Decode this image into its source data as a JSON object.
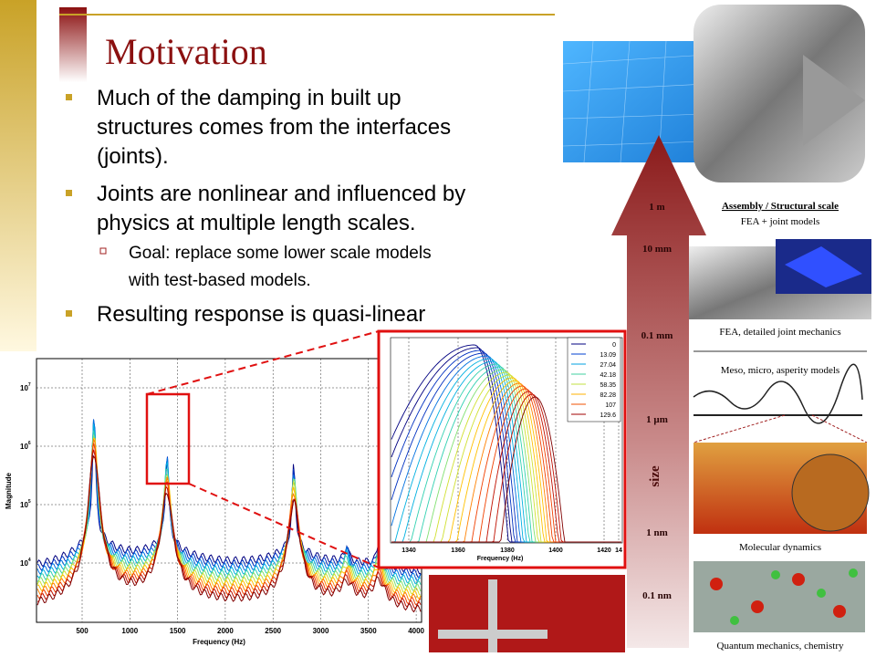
{
  "title": "Motivation",
  "bullets": [
    {
      "lines": [
        "Much of the damping in built up",
        "structures comes from the interfaces",
        "(joints)."
      ]
    },
    {
      "lines": [
        "Joints are nonlinear and influenced by",
        "physics at multiple length scales."
      ],
      "sub": [
        {
          "lines": [
            "Goal: replace some lower scale models",
            "with test-based models."
          ]
        }
      ]
    },
    {
      "lines": [
        "Resulting response is quasi-linear"
      ]
    }
  ],
  "main_plot": {
    "y_label": "Magnitude",
    "x_label": "Frequency (Hz)",
    "xticks": [
      "500",
      "1000",
      "1500",
      "2000",
      "2500",
      "3000",
      "3500",
      "4000"
    ],
    "yticks": [
      {
        "base": "10",
        "exponent": "7"
      },
      {
        "base": "10",
        "exponent": "6"
      },
      {
        "base": "10",
        "exponent": "5"
      },
      {
        "base": "10",
        "exponent": "4"
      }
    ]
  },
  "inset_plot": {
    "x_label": "Frequency (Hz)",
    "xticks": [
      "1340",
      "1360",
      "1380",
      "1400",
      "1420",
      "14"
    ],
    "legend": [
      "0",
      "13.09",
      "27.04",
      "42.18",
      "58.35",
      "82.28",
      "107",
      "129.6"
    ]
  },
  "scale": {
    "axis_label": "size",
    "levels": [
      "1 m",
      "10 mm",
      "0.1 mm",
      "1 µm",
      "1 nm",
      "0.1 nm"
    ],
    "captions": [
      "Assembly / Structural scale",
      "FEA + joint models",
      "FEA, detailed joint mechanics",
      "Meso, micro, asperity models",
      "Molecular dynamics",
      "Quantum mechanics, chemistry"
    ]
  }
}
